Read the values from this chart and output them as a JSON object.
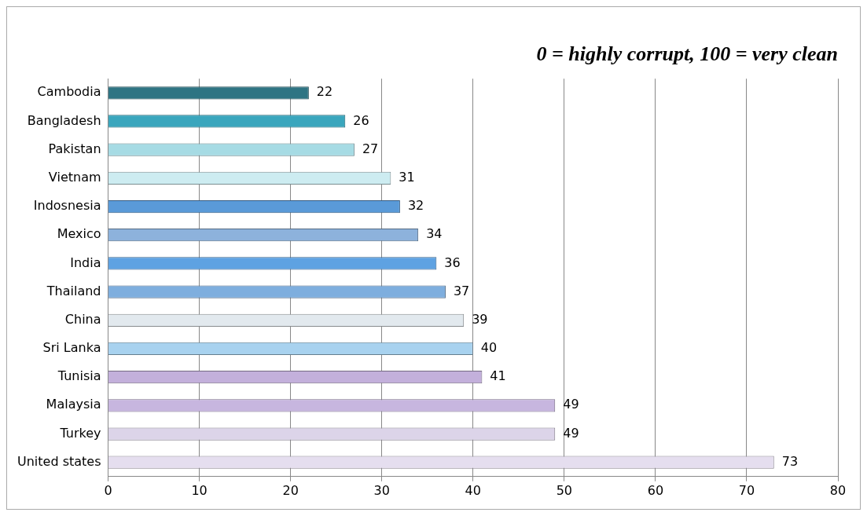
{
  "chart_data": {
    "type": "bar",
    "orientation": "horizontal",
    "title": "0 = highly corrupt, 100 = very clean",
    "categories": [
      "Cambodia",
      "Bangladesh",
      "Pakistan",
      "Vietnam",
      "Indosnesia",
      "Mexico",
      "India",
      "Thailand",
      "China",
      "Sri Lanka",
      "Tunisia",
      "Malaysia",
      "Turkey",
      "United states"
    ],
    "values": [
      22,
      26,
      27,
      31,
      32,
      34,
      36,
      37,
      39,
      40,
      41,
      49,
      49,
      73
    ],
    "colors": [
      "#2e7483",
      "#3aa6bd",
      "#a6dbe4",
      "#cdecf1",
      "#5a9ad8",
      "#8db2dc",
      "#5ea2e2",
      "#7eaede",
      "#e2e9ee",
      "#a8d2ef",
      "#c3b0db",
      "#c7b6df",
      "#dcd4e9",
      "#e5deef"
    ],
    "xlim": [
      0,
      80
    ],
    "xticks": [
      0,
      10,
      20,
      30,
      40,
      50,
      60,
      70,
      80
    ],
    "grid": "x",
    "data_labels": true,
    "legend": false
  }
}
